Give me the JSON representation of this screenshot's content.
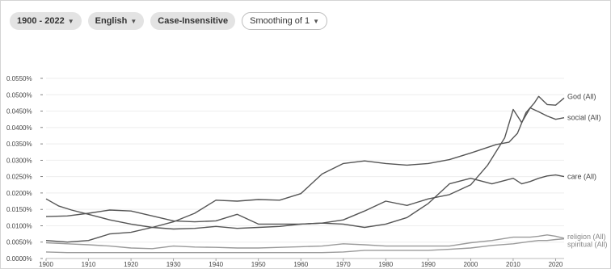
{
  "controls": {
    "year_range": "1900 - 2022",
    "language": "English",
    "case": "Case-Insensitive",
    "smoothing": "Smoothing of 1"
  },
  "colors": {
    "primary_line": "#555555",
    "secondary_line": "#9a9a9a",
    "grid": "#eeeeee"
  },
  "chart_data": {
    "type": "line",
    "title": "",
    "xlabel": "",
    "ylabel": "",
    "xlim": [
      1900,
      2022
    ],
    "ylim": [
      0,
      0.055
    ],
    "grid": true,
    "x_ticks": [
      1900,
      1910,
      1920,
      1930,
      1940,
      1950,
      1960,
      1970,
      1980,
      1990,
      2000,
      2010,
      2020
    ],
    "y_ticks": [
      {
        "value": 0.0,
        "label": "0.0000%"
      },
      {
        "value": 0.005,
        "label": "0.0050%"
      },
      {
        "value": 0.01,
        "label": "0.0100%"
      },
      {
        "value": 0.015,
        "label": "0.0150%"
      },
      {
        "value": 0.02,
        "label": "0.0200%"
      },
      {
        "value": 0.025,
        "label": "0.0250%"
      },
      {
        "value": 0.03,
        "label": "0.0300%"
      },
      {
        "value": 0.035,
        "label": "0.0350%"
      },
      {
        "value": 0.04,
        "label": "0.0400%"
      },
      {
        "value": 0.045,
        "label": "0.0450%"
      },
      {
        "value": 0.05,
        "label": "0.0500%"
      },
      {
        "value": 0.055,
        "label": "0.0550%"
      }
    ],
    "series": [
      {
        "name": "God (All)",
        "x": [
          1900,
          1905,
          1910,
          1915,
          1920,
          1925,
          1930,
          1935,
          1940,
          1945,
          1950,
          1955,
          1960,
          1965,
          1970,
          1975,
          1980,
          1985,
          1990,
          1995,
          2000,
          2003,
          2006,
          2009,
          2011,
          2013,
          2015,
          2016,
          2018,
          2020,
          2022
        ],
        "y": [
          0.0055,
          0.005,
          0.0055,
          0.0075,
          0.008,
          0.0095,
          0.0112,
          0.0138,
          0.0178,
          0.0175,
          0.018,
          0.0178,
          0.0198,
          0.0258,
          0.029,
          0.0298,
          0.029,
          0.0285,
          0.029,
          0.0302,
          0.0322,
          0.0335,
          0.0348,
          0.0355,
          0.0382,
          0.0445,
          0.0475,
          0.0495,
          0.047,
          0.0468,
          0.049
        ]
      },
      {
        "name": "social (All)",
        "x": [
          1900,
          1905,
          1910,
          1915,
          1920,
          1925,
          1930,
          1935,
          1940,
          1945,
          1950,
          1955,
          1960,
          1965,
          1970,
          1975,
          1980,
          1985,
          1990,
          1995,
          2000,
          2004,
          2008,
          2010,
          2012,
          2014,
          2016,
          2018,
          2020,
          2022
        ],
        "y": [
          0.0128,
          0.013,
          0.0138,
          0.0148,
          0.0145,
          0.013,
          0.0115,
          0.0112,
          0.0115,
          0.0135,
          0.0105,
          0.0105,
          0.0105,
          0.0108,
          0.0118,
          0.0145,
          0.0175,
          0.0162,
          0.0182,
          0.0195,
          0.0225,
          0.0285,
          0.0368,
          0.0455,
          0.0415,
          0.046,
          0.0448,
          0.0435,
          0.0425,
          0.043
        ]
      },
      {
        "name": "care (All)",
        "x": [
          1900,
          1903,
          1906,
          1910,
          1915,
          1920,
          1925,
          1930,
          1935,
          1940,
          1945,
          1950,
          1955,
          1960,
          1965,
          1970,
          1975,
          1980,
          1985,
          1990,
          1995,
          2000,
          2005,
          2010,
          2012,
          2014,
          2016,
          2018,
          2020,
          2022
        ],
        "y": [
          0.0182,
          0.016,
          0.0148,
          0.0135,
          0.0118,
          0.0105,
          0.0095,
          0.009,
          0.0092,
          0.0098,
          0.0092,
          0.0095,
          0.0098,
          0.0105,
          0.0108,
          0.0105,
          0.0095,
          0.0105,
          0.0125,
          0.0168,
          0.0228,
          0.0245,
          0.0228,
          0.0245,
          0.0228,
          0.0235,
          0.0245,
          0.0252,
          0.0255,
          0.025
        ]
      },
      {
        "name": "religion (All)",
        "x": [
          1900,
          1905,
          1910,
          1915,
          1920,
          1925,
          1930,
          1935,
          1940,
          1945,
          1950,
          1955,
          1960,
          1965,
          1970,
          1975,
          1980,
          1985,
          1990,
          1995,
          2000,
          2005,
          2010,
          2014,
          2016,
          2018,
          2020,
          2022
        ],
        "y": [
          0.0048,
          0.0045,
          0.0042,
          0.0038,
          0.0032,
          0.003,
          0.0038,
          0.0035,
          0.0034,
          0.0032,
          0.0032,
          0.0034,
          0.0036,
          0.0038,
          0.0045,
          0.0042,
          0.0038,
          0.0038,
          0.0038,
          0.0038,
          0.0048,
          0.0055,
          0.0065,
          0.0065,
          0.0068,
          0.0072,
          0.0068,
          0.0062
        ]
      },
      {
        "name": "spiritual (All)",
        "x": [
          1900,
          1905,
          1910,
          1915,
          1920,
          1925,
          1930,
          1935,
          1940,
          1945,
          1950,
          1955,
          1960,
          1965,
          1970,
          1975,
          1980,
          1985,
          1990,
          1995,
          2000,
          2005,
          2010,
          2014,
          2016,
          2018,
          2020,
          2022
        ],
        "y": [
          0.002,
          0.0018,
          0.0018,
          0.0018,
          0.0018,
          0.0018,
          0.0018,
          0.0018,
          0.0018,
          0.0018,
          0.0018,
          0.0018,
          0.0018,
          0.0018,
          0.002,
          0.0025,
          0.0025,
          0.0025,
          0.0025,
          0.0028,
          0.0032,
          0.004,
          0.0045,
          0.0052,
          0.0055,
          0.0055,
          0.0058,
          0.006
        ]
      }
    ]
  }
}
